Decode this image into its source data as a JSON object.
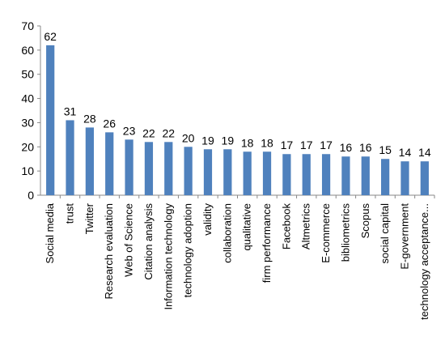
{
  "chart_data": {
    "type": "bar",
    "categories": [
      "Social media",
      "trust",
      "Twitter",
      "Research evaluation",
      "Web of Science",
      "Citation analysis",
      "Information technology",
      "technology adoption",
      "validity",
      "collaboration",
      "qualitative",
      "firm performance",
      "Facebook",
      "Altmetrics",
      "E-commerce",
      "bibliometrics",
      "Scopus",
      "social capital",
      "E-government",
      "technology acceptance..."
    ],
    "values": [
      62,
      31,
      28,
      26,
      23,
      22,
      22,
      20,
      19,
      19,
      18,
      18,
      17,
      17,
      17,
      16,
      16,
      15,
      14,
      14
    ],
    "ylim": [
      0,
      70
    ],
    "yticks": [
      "0",
      "10",
      "20",
      "30",
      "40",
      "50",
      "60",
      "70"
    ],
    "grid": false,
    "data_labels": true,
    "bar_color": "#4f81bd",
    "axis_color": "#888888"
  }
}
